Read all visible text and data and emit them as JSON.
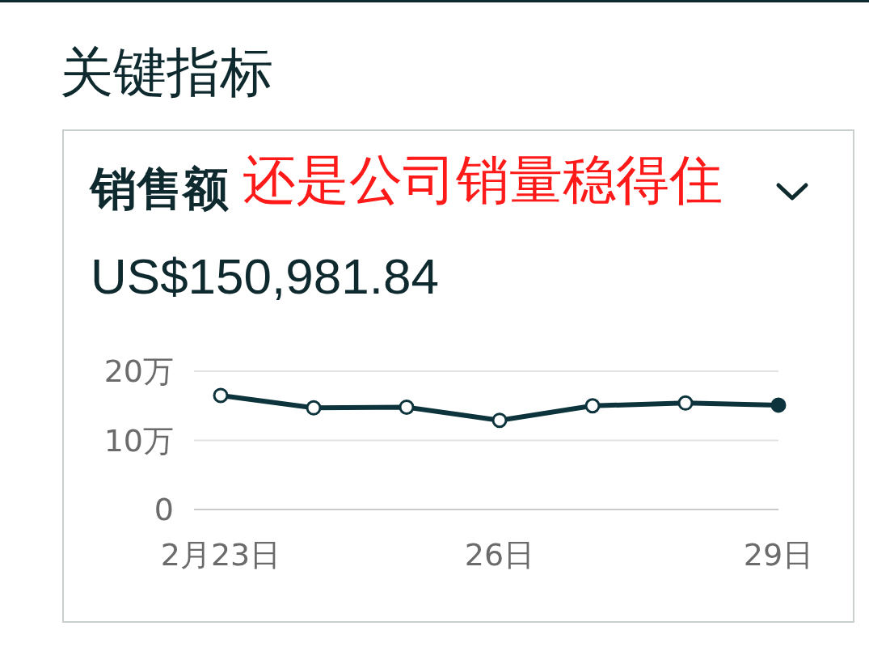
{
  "chart_data": {
    "type": "line",
    "title": "销售额",
    "subtitle": "US$150,981.84",
    "annotations": [
      "关键指标",
      "还是公司销量稳得住"
    ],
    "categories": [
      "2月23日",
      null,
      null,
      "26日",
      null,
      null,
      "29日"
    ],
    "values": [
      16.5,
      14.7,
      14.8,
      12.9,
      15.0,
      15.4,
      15.1
    ],
    "color": "#0d343c",
    "marker": "circle",
    "line_style": "solid",
    "ylim": [
      0,
      20
    ],
    "yticks": [
      0,
      {
        "value": 10,
        "label": "10万"
      },
      {
        "value": 20,
        "label": "20万"
      }
    ],
    "grid": "y"
  }
}
